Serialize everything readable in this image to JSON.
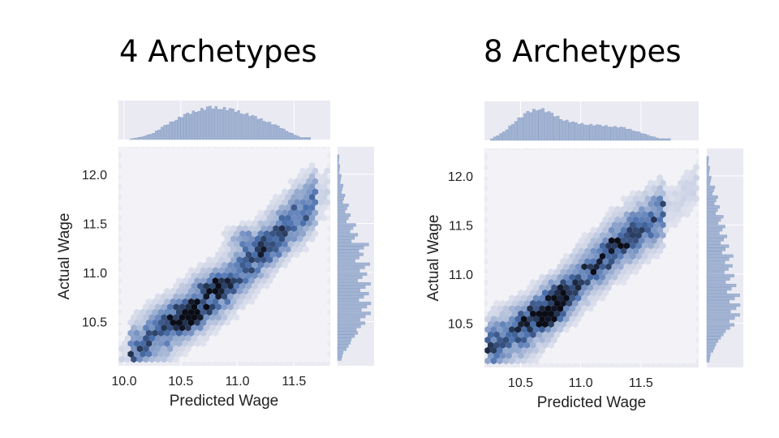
{
  "chart_data": [
    {
      "type": "hexbin-jointplot",
      "title": "4 Archetypes",
      "xlabel": "Predicted Wage",
      "ylabel": "Actual Wage",
      "xlim": [
        9.95,
        11.82
      ],
      "ylim": [
        10.05,
        12.28
      ],
      "xticks": [
        10.0,
        10.5,
        11.0,
        11.5
      ],
      "yticks": [
        10.5,
        11.0,
        11.5,
        12.0
      ],
      "x_tick_labels": [
        "10.0",
        "10.5",
        "11.0",
        "11.5"
      ],
      "y_tick_labels": [
        "10.5",
        "11.0",
        "11.5",
        "12.0"
      ],
      "grid": true,
      "color": "#4c72b0",
      "density_trend": {
        "points": [
          [
            10.1,
            10.2
          ],
          [
            10.4,
            10.45
          ],
          [
            10.6,
            10.62
          ],
          [
            10.9,
            10.85
          ],
          [
            11.2,
            11.2
          ],
          [
            11.5,
            11.55
          ]
        ]
      },
      "hotspots": [
        {
          "x": 10.6,
          "y": 10.6,
          "weight": 1.0
        },
        {
          "x": 10.8,
          "y": 10.88,
          "weight": 0.75
        },
        {
          "x": 10.55,
          "y": 10.52,
          "weight": 0.8
        },
        {
          "x": 11.05,
          "y": 11.35,
          "weight": 0.55
        },
        {
          "x": 11.3,
          "y": 11.25,
          "weight": 0.55
        }
      ],
      "marginal_x": {
        "x": [
          10.1,
          10.2,
          10.3,
          10.4,
          10.5,
          10.6,
          10.7,
          10.8,
          10.9,
          11.0,
          11.1,
          11.2,
          11.3,
          11.4,
          11.5,
          11.6
        ],
        "counts": [
          0.02,
          0.08,
          0.2,
          0.42,
          0.62,
          0.78,
          0.9,
          0.98,
          0.96,
          0.9,
          0.8,
          0.68,
          0.55,
          0.4,
          0.22,
          0.06
        ]
      },
      "marginal_y": {
        "y": [
          10.15,
          10.25,
          10.35,
          10.45,
          10.55,
          10.65,
          10.75,
          10.85,
          10.95,
          11.05,
          11.15,
          11.25,
          11.35,
          11.45,
          11.55,
          11.65,
          11.75,
          11.85,
          11.95,
          12.05,
          12.15
        ],
        "counts": [
          0.15,
          0.35,
          0.55,
          0.75,
          0.9,
          0.95,
          0.85,
          0.9,
          0.8,
          0.88,
          0.7,
          0.85,
          0.55,
          0.5,
          0.35,
          0.3,
          0.2,
          0.15,
          0.1,
          0.06,
          0.04
        ]
      }
    },
    {
      "type": "hexbin-jointplot",
      "title": "8 Archetypes",
      "xlabel": "Predicted Wage",
      "ylabel": "Actual Wage",
      "xlim": [
        10.2,
        11.98
      ],
      "ylim": [
        10.05,
        12.28
      ],
      "xticks": [
        10.5,
        11.0,
        11.5
      ],
      "yticks": [
        10.5,
        11.0,
        11.5,
        12.0
      ],
      "x_tick_labels": [
        "10.5",
        "11.0",
        "11.5"
      ],
      "y_tick_labels": [
        "10.5",
        "11.0",
        "11.5",
        "12.0"
      ],
      "grid": true,
      "color": "#4c72b0",
      "density_trend": {
        "points": [
          [
            10.3,
            10.3
          ],
          [
            10.55,
            10.45
          ],
          [
            10.75,
            10.65
          ],
          [
            11.0,
            10.95
          ],
          [
            11.3,
            11.3
          ],
          [
            11.65,
            11.6
          ]
        ]
      },
      "hotspots": [
        {
          "x": 10.72,
          "y": 10.62,
          "weight": 1.0
        },
        {
          "x": 10.82,
          "y": 10.82,
          "weight": 0.75
        },
        {
          "x": 10.62,
          "y": 10.55,
          "weight": 0.7
        },
        {
          "x": 11.3,
          "y": 11.3,
          "weight": 0.45
        },
        {
          "x": 11.15,
          "y": 11.05,
          "weight": 0.45
        }
      ],
      "marginal_x": {
        "x": [
          10.3,
          10.4,
          10.5,
          10.6,
          10.7,
          10.8,
          10.9,
          11.0,
          11.1,
          11.2,
          11.3,
          11.4,
          11.5,
          11.6,
          11.7
        ],
        "counts": [
          0.05,
          0.25,
          0.6,
          0.85,
          0.98,
          0.8,
          0.62,
          0.52,
          0.48,
          0.45,
          0.42,
          0.38,
          0.28,
          0.15,
          0.05
        ]
      },
      "marginal_y": {
        "y": [
          10.15,
          10.25,
          10.35,
          10.45,
          10.55,
          10.65,
          10.75,
          10.85,
          10.95,
          11.05,
          11.15,
          11.25,
          11.35,
          11.45,
          11.55,
          11.65,
          11.75,
          11.85,
          11.95,
          12.05,
          12.15
        ],
        "counts": [
          0.1,
          0.25,
          0.45,
          0.75,
          0.9,
          0.95,
          0.9,
          0.8,
          0.75,
          0.7,
          0.72,
          0.6,
          0.55,
          0.5,
          0.45,
          0.35,
          0.3,
          0.22,
          0.12,
          0.08,
          0.05
        ]
      }
    }
  ]
}
